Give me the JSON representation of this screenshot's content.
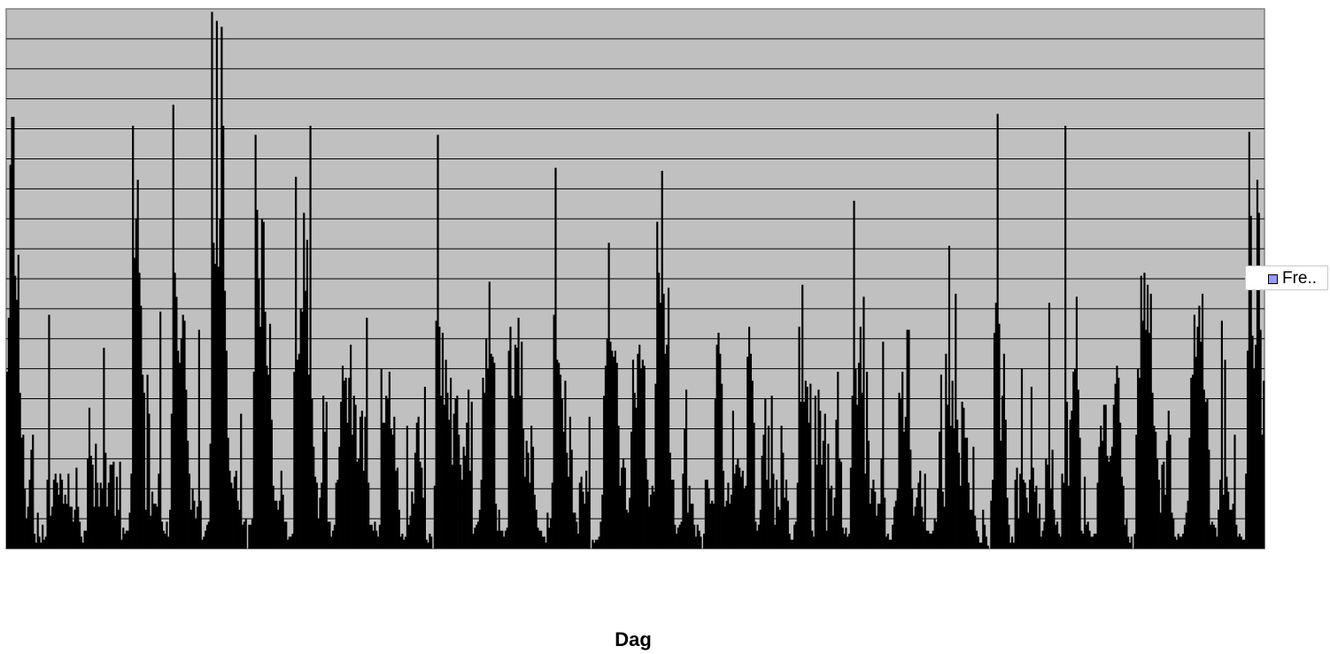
{
  "chart_data": {
    "type": "bar",
    "title": "",
    "xlabel": "Dag",
    "ylabel": "",
    "ylim": [
      0,
      18
    ],
    "grid": true,
    "y_tick_labels_shown": false,
    "x_tick_labels_shown": false,
    "legend": {
      "position": "right",
      "entries": [
        "Fre.."
      ]
    },
    "colors": {
      "plot_area": "#c0c0c0",
      "bars": "#000000",
      "gridlines": "#000000",
      "legend_swatch": "#9999ff"
    },
    "series": [
      {
        "values": [
          5.9,
          7.7,
          12.8,
          14.4,
          14.4,
          9.1,
          8.3,
          9.8,
          5.2,
          3.7,
          3.8,
          2.0,
          1.0,
          1.4,
          2.3,
          3.3,
          3.8,
          0.5,
          0.2,
          1.2,
          0.4,
          0.2,
          0.8,
          0.3,
          0.4,
          2.3,
          7.8,
          1.1,
          1.4,
          2.3,
          2.5,
          2.2,
          1.8,
          2.5,
          2.3,
          1.5,
          1.8,
          1.5,
          2.5,
          1.4,
          1.4,
          0.9,
          1.3,
          2.7,
          1.4,
          0.9,
          0.4,
          0.2,
          0.6,
          0.6,
          3.0,
          4.7,
          3.1,
          2.8,
          1.4,
          3.5,
          2.2,
          1.4,
          2.2,
          2.0,
          6.7,
          3.2,
          1.4,
          2.2,
          2.8,
          2.8,
          2.9,
          1.1,
          2.4,
          1.3,
          2.9,
          0.3,
          0.7,
          0.5,
          0.6,
          0.6,
          1.2,
          2.5,
          14.1,
          9.7,
          11.0,
          12.3,
          9.2,
          8.1,
          5.8,
          5.2,
          1.3,
          5.8,
          4.5,
          1.1,
          1.9,
          1.5,
          1.5,
          1.4,
          2.5,
          7.9,
          0.9,
          0.6,
          0.5,
          0.9,
          0.4,
          1.3,
          4.5,
          14.8,
          9.2,
          8.4,
          6.6,
          6.2,
          7.0,
          7.8,
          7.6,
          5.3,
          3.6,
          2.5,
          1.3,
          2.0,
          1.6,
          1.0,
          1.4,
          7.3,
          1.6,
          0.3,
          0.4,
          0.6,
          0.8,
          0.9,
          3.5,
          17.9,
          10.2,
          9.5,
          17.6,
          9.4,
          11.0,
          17.4,
          14.1,
          8.6,
          6.6,
          3.7,
          2.6,
          2.2,
          2.0,
          2.4,
          2.6,
          1.6,
          1.3,
          4.5,
          0.8,
          0.9,
          1.0,
          0.0,
          0.8,
          0.8,
          1.0,
          5.9,
          13.8,
          11.3,
          9.0,
          7.4,
          11.0,
          10.9,
          7.9,
          6.1,
          5.8,
          7.5,
          4.3,
          2.1,
          1.6,
          1.6,
          1.3,
          1.6,
          2.6,
          1.8,
          0.9,
          0.9,
          0.3,
          0.4,
          0.4,
          0.5,
          5.9,
          12.4,
          6.3,
          6.5,
          8.0,
          7.9,
          11.2,
          8.6,
          10.3,
          5.8,
          14.1,
          5.0,
          3.4,
          2.4,
          2.2,
          1.0,
          1.7,
          2.2,
          5.1,
          3.9,
          4.9,
          0.9,
          0.9,
          0.4,
          0.6,
          0.8,
          2.2,
          2.3,
          3.4,
          4.9,
          6.1,
          5.6,
          5.7,
          4.2,
          5.7,
          6.8,
          3.8,
          5.1,
          4.8,
          2.9,
          3.0,
          4.4,
          4.6,
          2.6,
          4.4,
          7.7,
          2.2,
          0.8,
          0.8,
          0.6,
          0.9,
          0.6,
          0.4,
          0.8,
          6.0,
          4.2,
          4.2,
          5.1,
          5.0,
          5.9,
          4.0,
          3.8,
          4.4,
          2.6,
          2.7,
          1.3,
          0.4,
          0.5,
          0.3,
          0.4,
          4.1,
          0.8,
          1.1,
          1.9,
          1.5,
          3.2,
          4.2,
          4.4,
          2.9,
          2.7,
          1.7,
          5.4,
          0.3,
          0.2,
          0.5,
          0.4,
          0.0,
          2.1,
          7.6,
          13.8,
          7.4,
          5.1,
          7.2,
          4.8,
          6.3,
          5.2,
          4.3,
          5.7,
          2.8,
          4.5,
          5.0,
          5.1,
          3.8,
          2.8,
          2.3,
          3.4,
          3.1,
          4.2,
          5.3,
          2.6,
          4.9,
          0.5,
          0.7,
          0.8,
          0.9,
          1.3,
          2.3,
          5.7,
          5.2,
          7.0,
          6.0,
          8.9,
          6.5,
          6.4,
          6.2,
          1.5,
          0.6,
          1.3,
          0.6,
          0.6,
          0.4,
          0.6,
          0.7,
          6.6,
          7.4,
          5.1,
          5.0,
          6.8,
          6.7,
          7.7,
          5.1,
          6.9,
          4.0,
          2.4,
          3.6,
          3.2,
          2.2,
          4.1,
          3.4,
          1.8,
          1.3,
          0.7,
          0.6,
          0.6,
          0.4,
          0.4,
          0.2,
          1.2,
          0.7,
          1.0,
          2.2,
          7.8,
          12.7,
          6.3,
          6.2,
          5.8,
          5.0,
          3.9,
          5.6,
          3.2,
          2.4,
          4.4,
          3.3,
          1.2,
          1.2,
          0.9,
          0.5,
          2.2,
          2.4,
          1.9,
          1.5,
          2.6,
          1.9,
          4.4,
          0.0,
          0.3,
          0.2,
          0.3,
          0.3,
          0.4,
          0.9,
          1.8,
          5.1,
          6.1,
          7.0,
          10.2,
          6.9,
          6.6,
          6.4,
          6.6,
          6.2,
          4.1,
          2.1,
          2.7,
          3.0,
          2.7,
          1.3,
          1.2,
          1.7,
          3.9,
          6.3,
          5.2,
          4.7,
          6.5,
          6.8,
          6.0,
          6.3,
          6.1,
          3.0,
          2.3,
          1.4,
          1.8,
          2.1,
          1.9,
          5.5,
          10.9,
          9.2,
          8.2,
          12.6,
          8.5,
          6.5,
          6.8,
          8.7,
          3.2,
          2.3,
          2.3,
          0.8,
          0.5,
          0.7,
          0.8,
          0.9,
          2.5,
          4.0,
          5.3,
          1.2,
          2.1,
          1.5,
          1.5,
          0.8,
          0.4,
          0.8,
          0.6,
          0.4,
          0.0,
          0.5,
          2.3,
          2.3,
          2.0,
          1.5,
          1.6,
          1.5,
          5.0,
          6.8,
          7.2,
          6.5,
          5.5,
          2.6,
          1.4,
          1.6,
          2.2,
          1.5,
          1.8,
          4.6,
          2.5,
          2.8,
          3.0,
          2.7,
          2.4,
          2.6,
          2.0,
          2.1,
          6.4,
          7.4,
          6.5,
          5.6,
          4.2,
          0.9,
          0.6,
          0.8,
          1.3,
          3.1,
          3.8,
          5.0,
          2.3,
          4.1,
          2.0,
          5.1,
          2.5,
          0.8,
          2.3,
          1.4,
          1.3,
          4.1,
          3.2,
          1.7,
          2.3,
          1.6,
          0.5,
          0.3,
          0.3,
          0.8,
          0.9,
          2.2,
          7.4,
          4.9,
          8.8,
          4.9,
          5.6,
          5.4,
          4.2,
          5.5,
          0.6,
          0.4,
          5.1,
          2.8,
          5.3,
          4.6,
          2.8,
          3.6,
          4.5,
          0.6,
          3.5,
          2.0,
          2.1,
          1.1,
          1.7,
          4.3,
          5.9,
          3.0,
          2.9,
          0.7,
          0.5,
          0.7,
          0.4,
          0.5,
          2.7,
          5.1,
          11.6,
          6.0,
          4.8,
          6.2,
          7.4,
          5.2,
          8.4,
          2.5,
          5.9,
          3.6,
          1.5,
          2.0,
          2.3,
          1.9,
          1.1,
          1.5,
          1.5,
          3.0,
          6.9,
          1.7,
          0.4,
          0.5,
          0.3,
          0.3,
          0.8,
          1.4,
          1.6,
          2.0,
          5.2,
          5.0,
          5.9,
          3.9,
          4.4,
          7.3,
          7.3,
          3.3,
          2.0,
          1.1,
          1.4,
          1.7,
          2.2,
          2.6,
          1.4,
          0.9,
          2.5,
          0.6,
          0.6,
          0.5,
          0.5,
          0.6,
          1.0,
          0.9,
          2.0,
          3.9,
          5.8,
          1.9,
          1.4,
          6.5,
          4.8,
          10.1,
          4.1,
          5.6,
          4.0,
          8.5,
          4.3,
          3.2,
          2.1,
          4.9,
          4.7,
          3.7,
          3.7,
          2.2,
          1.3,
          1.3,
          3.4,
          1.1,
          0.6,
          0.4,
          0.2,
          0.2,
          1.3,
          0.8,
          0.4,
          0.1,
          0.0,
          1.6,
          2.3,
          7.2,
          8.2,
          14.5,
          7.5,
          3.6,
          5.1,
          6.5,
          4.3,
          1.7,
          0.8,
          0.2,
          0.4,
          0.2,
          2.3,
          2.7,
          1.0,
          2.5,
          6.0,
          2.3,
          2.2,
          1.7,
          1.2,
          2.3,
          5.4,
          2.7,
          1.9,
          2.1,
          1.0,
          1.5,
          0.4,
          0.6,
          0.9,
          3.0,
          2.8,
          8.2,
          2.0,
          3.3,
          1.3,
          0.8,
          0.9,
          0.5,
          0.4,
          2.5,
          2.2,
          14.1,
          4.9,
          2.1,
          4.3,
          4.6,
          5.9,
          6.0,
          8.4,
          5.3,
          3.7,
          0.6,
          0.5,
          2.4,
          0.8,
          0.9,
          0.6,
          0.4,
          0.4,
          0.5,
          0.5,
          2.2,
          3.4,
          4.1,
          3.6,
          4.8,
          4.8,
          3.1,
          2.9,
          3.1,
          3.4,
          4.8,
          5.5,
          6.1,
          5.7,
          4.2,
          2.4,
          2.1,
          0.8,
          1.0,
          0.4,
          0.2,
          0.4,
          0.0,
          0.5,
          3.8,
          6.0,
          5.7,
          9.1,
          7.6,
          9.2,
          7.3,
          8.8,
          7.2,
          8.5,
          5.2,
          4.1,
          3.9,
          3.0,
          2.3,
          1.2,
          2.8,
          2.9,
          1.8,
          3.6,
          4.6,
          3.8,
          1.2,
          1.0,
          0.4,
          0.3,
          0.5,
          0.4,
          0.4,
          0.5,
          0.8,
          1.2,
          1.6,
          3.7,
          5.7,
          5.8,
          7.8,
          6.4,
          7.4,
          8.1,
          6.9,
          8.5,
          5.3,
          4.9,
          5.0,
          3.3,
          0.8,
          0.9,
          0.8,
          0.7,
          0.4,
          1.3,
          2.3,
          7.6,
          1.8,
          6.3,
          2.4,
          1.9,
          1.3,
          1.3,
          1.5,
          3.8,
          0.8,
          0.4,
          0.5,
          0.4,
          0.3,
          0.3,
          2.5,
          6.6,
          13.9,
          11.1,
          7.1,
          6.0,
          6.8,
          12.3,
          11.2,
          7.3,
          3.8,
          5.6
        ]
      }
    ]
  }
}
